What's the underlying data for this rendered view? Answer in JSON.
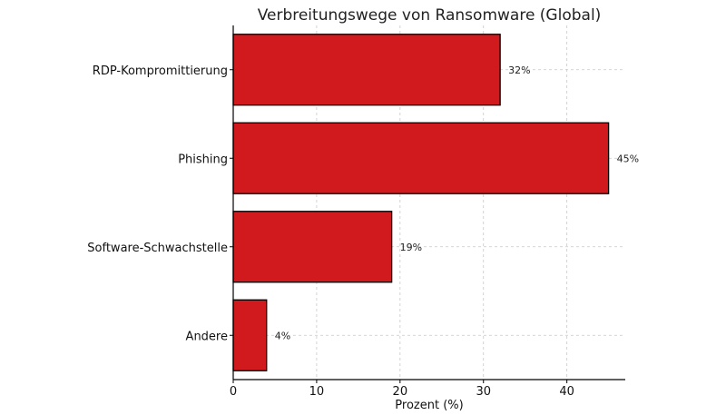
{
  "chart_data": {
    "type": "bar",
    "orientation": "horizontal",
    "title": "Verbreitungswege von Ransomware (Global)",
    "xlabel": "Prozent (%)",
    "ylabel": "",
    "categories": [
      "RDP-Kompromittierung",
      "Phishing",
      "Software-Schwachstelle",
      "Andere"
    ],
    "values": [
      32,
      45,
      19,
      4
    ],
    "data_labels": [
      "32%",
      "45%",
      "19%",
      "4%"
    ],
    "xlim": [
      0,
      47
    ],
    "xticks": [
      0,
      10,
      20,
      30,
      40
    ],
    "xtick_labels": [
      "0",
      "10",
      "20",
      "30",
      "40"
    ],
    "grid": true,
    "bar_color": "#d11a1e",
    "edge_color": "#000000"
  }
}
